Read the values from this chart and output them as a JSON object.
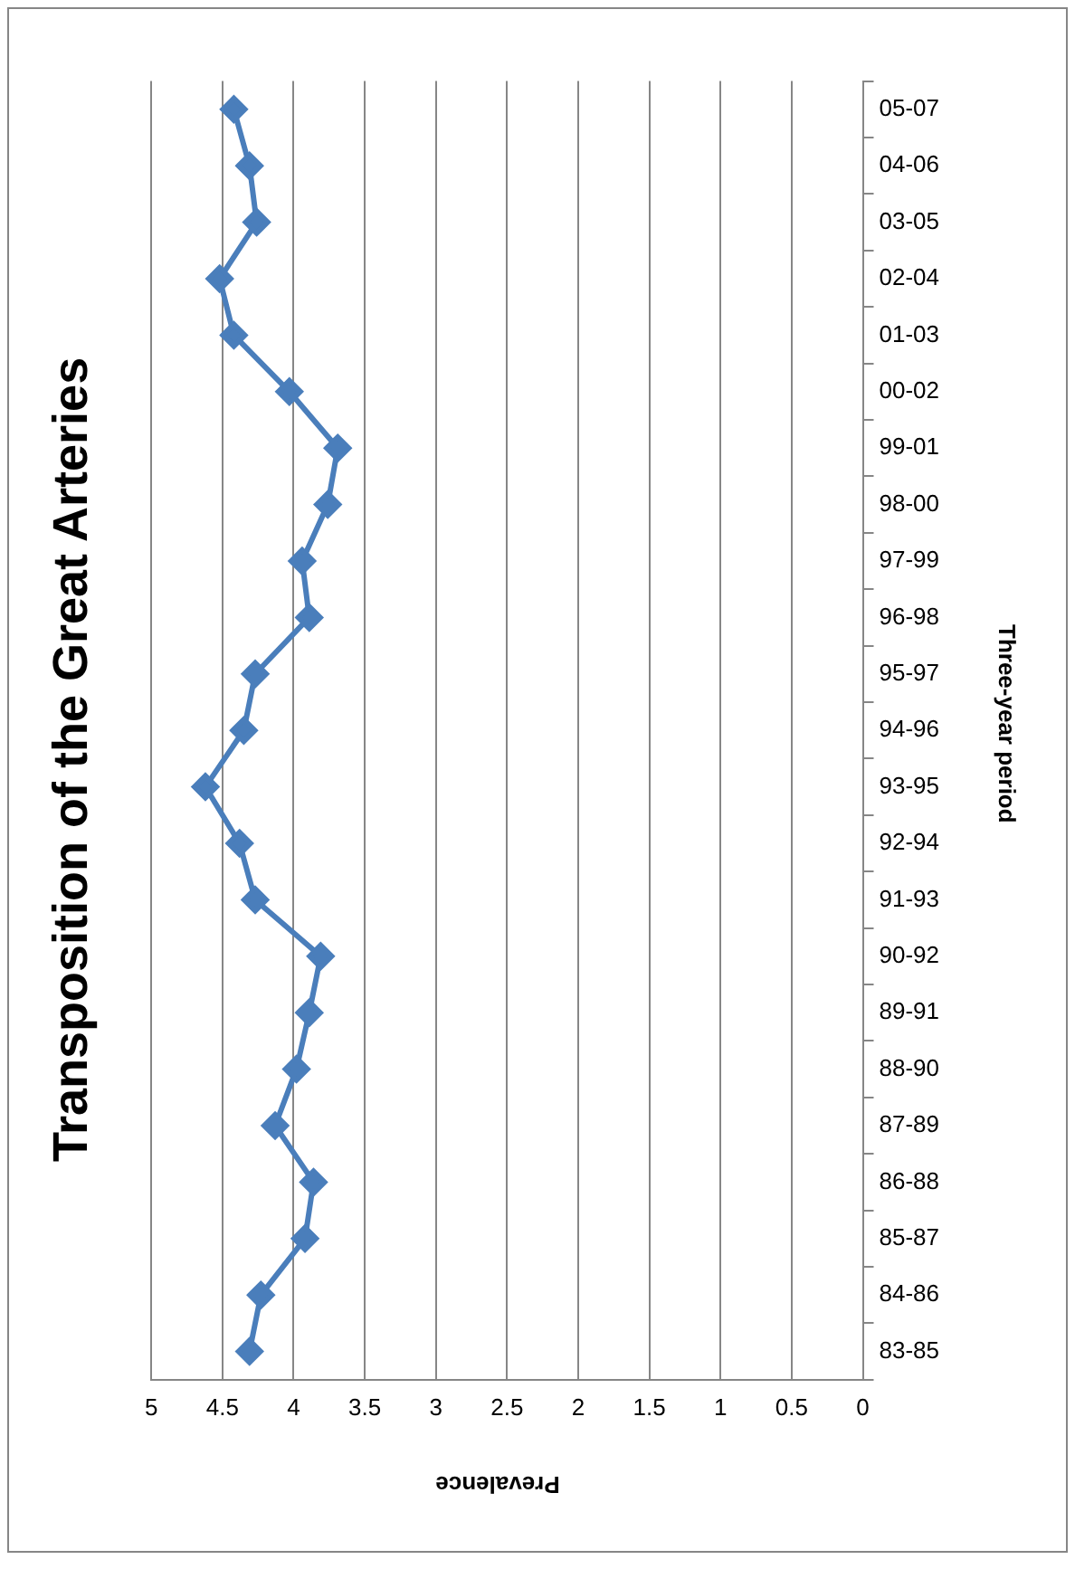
{
  "chart_data": {
    "type": "line",
    "orientation": "horizontal",
    "title": "Transposition of the Great Arteries",
    "xlabel": "Prevalence",
    "ylabel": "Three-year period",
    "categories": [
      "05-07",
      "04-06",
      "03-05",
      "02-04",
      "01-03",
      "00-02",
      "99-01",
      "98-00",
      "97-99",
      "96-98",
      "95-97",
      "94-96",
      "93-95",
      "92-94",
      "91-93",
      "90-92",
      "89-91",
      "88-90",
      "87-89",
      "86-88",
      "85-87",
      "84-86",
      "83-85"
    ],
    "series": [
      {
        "color": "#4a7ebb",
        "values": [
          4.42,
          4.31,
          4.26,
          4.52,
          4.42,
          4.03,
          3.69,
          3.76,
          3.94,
          3.89,
          4.27,
          4.35,
          4.62,
          4.38,
          4.27,
          3.81,
          3.89,
          3.98,
          4.13,
          3.86,
          3.92,
          4.23,
          4.31
        ]
      }
    ],
    "xlim": [
      5,
      0
    ],
    "xticks": [
      5,
      4.5,
      4,
      3.5,
      3,
      2.5,
      2,
      1.5,
      1,
      0.5,
      0
    ],
    "grid": "x",
    "legend": false,
    "marker": "diamond",
    "line_style": "solid"
  }
}
